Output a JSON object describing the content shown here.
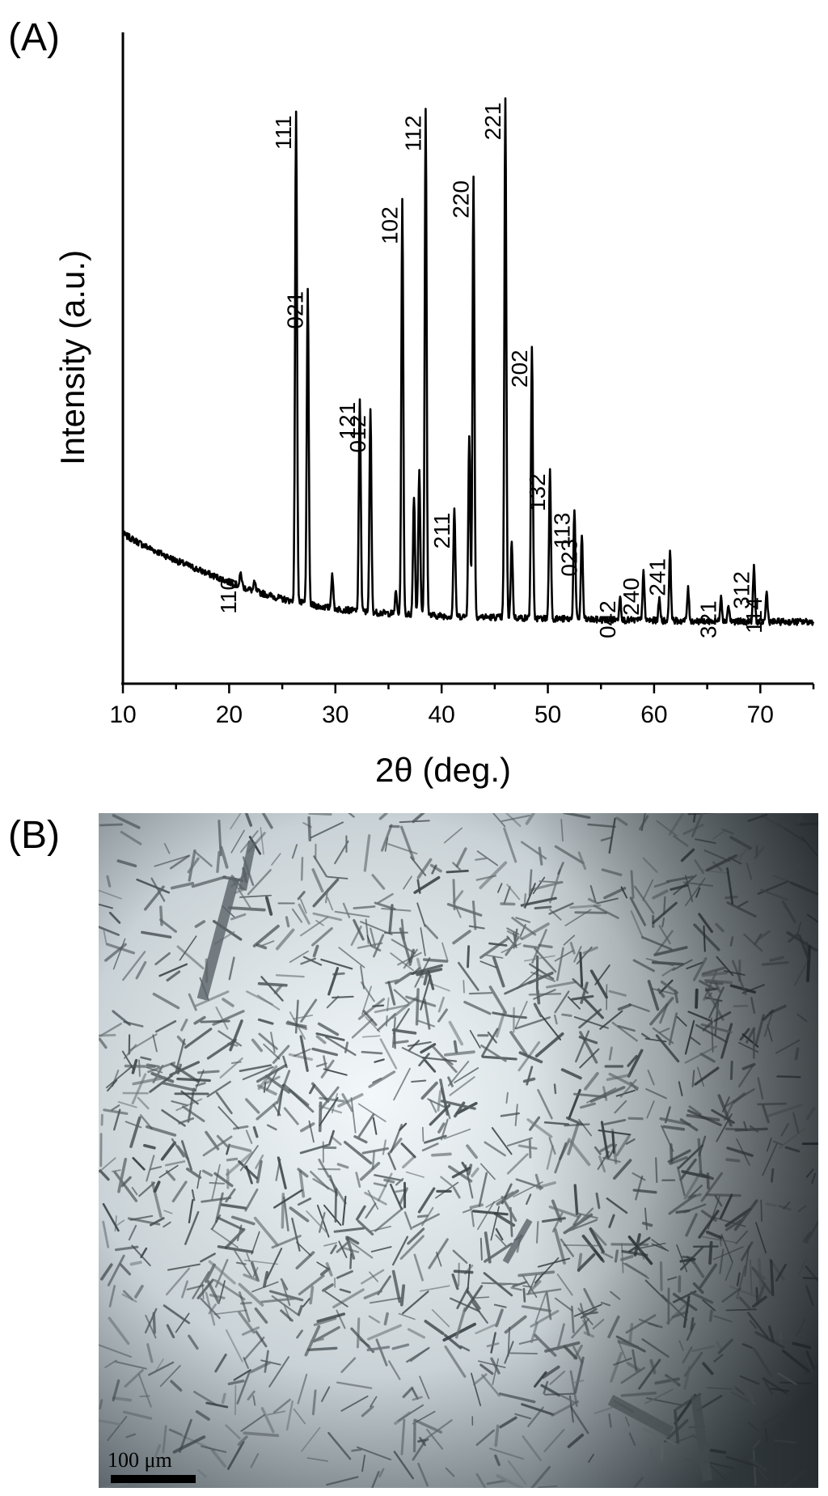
{
  "panels": {
    "a_label": "(A)",
    "b_label": "(B)"
  },
  "chart_data": {
    "type": "line",
    "xlabel": "2θ (deg.)",
    "ylabel": "Intensity (a.u.)",
    "xlim": [
      10,
      75
    ],
    "ylim": [
      0,
      100
    ],
    "xticks": [
      10,
      20,
      30,
      40,
      50,
      60,
      70
    ],
    "grid": false,
    "legend": "none",
    "baseline": [
      [
        10,
        23.0
      ],
      [
        12,
        21.2
      ],
      [
        15,
        18.9
      ],
      [
        18,
        16.9
      ],
      [
        20,
        15.6
      ],
      [
        22,
        14.4
      ],
      [
        25,
        13.0
      ],
      [
        28,
        12.0
      ],
      [
        30,
        11.5
      ],
      [
        33,
        11.0
      ],
      [
        36,
        10.7
      ],
      [
        40,
        10.4
      ],
      [
        45,
        10.2
      ],
      [
        50,
        10.0
      ],
      [
        55,
        9.8
      ],
      [
        60,
        9.7
      ],
      [
        65,
        9.6
      ],
      [
        70,
        9.5
      ],
      [
        75,
        9.5
      ]
    ],
    "peaks": [
      {
        "x": 21.1,
        "y": 17.0,
        "label": "110"
      },
      {
        "x": 22.4,
        "y": 15.5,
        "label": ""
      },
      {
        "x": 26.3,
        "y": 88.0,
        "label": "111"
      },
      {
        "x": 27.4,
        "y": 61.0,
        "label": "021"
      },
      {
        "x": 29.7,
        "y": 17.0,
        "label": ""
      },
      {
        "x": 32.3,
        "y": 44.0,
        "label": "121"
      },
      {
        "x": 33.3,
        "y": 42.0,
        "label": "012"
      },
      {
        "x": 35.7,
        "y": 14.0,
        "label": ""
      },
      {
        "x": 36.3,
        "y": 74.0,
        "label": "102"
      },
      {
        "x": 37.4,
        "y": 29.0,
        "label": ""
      },
      {
        "x": 37.9,
        "y": 33.0,
        "label": ""
      },
      {
        "x": 38.5,
        "y": 88.0,
        "label": "112"
      },
      {
        "x": 41.2,
        "y": 27.0,
        "label": "211"
      },
      {
        "x": 42.6,
        "y": 38.0,
        "label": ""
      },
      {
        "x": 43.0,
        "y": 78.0,
        "label": "220"
      },
      {
        "x": 46.0,
        "y": 90.0,
        "label": "221"
      },
      {
        "x": 46.6,
        "y": 22.0,
        "label": ""
      },
      {
        "x": 48.5,
        "y": 52.0,
        "label": "202"
      },
      {
        "x": 50.2,
        "y": 33.0,
        "label": "132"
      },
      {
        "x": 52.5,
        "y": 27.0,
        "label": "113"
      },
      {
        "x": 53.2,
        "y": 23.0,
        "label": "023"
      },
      {
        "x": 56.8,
        "y": 13.5,
        "label": "042"
      },
      {
        "x": 59.0,
        "y": 17.0,
        "label": "240"
      },
      {
        "x": 60.5,
        "y": 13.0,
        "label": ""
      },
      {
        "x": 61.5,
        "y": 20.0,
        "label": "241"
      },
      {
        "x": 63.2,
        "y": 14.5,
        "label": ""
      },
      {
        "x": 66.3,
        "y": 13.5,
        "label": "321"
      },
      {
        "x": 67.0,
        "y": 12.0,
        "label": ""
      },
      {
        "x": 69.4,
        "y": 18.0,
        "label": "312"
      },
      {
        "x": 70.6,
        "y": 14.0,
        "label": "114"
      }
    ]
  },
  "micrograph": {
    "scale_bar_label": "100 μm"
  }
}
